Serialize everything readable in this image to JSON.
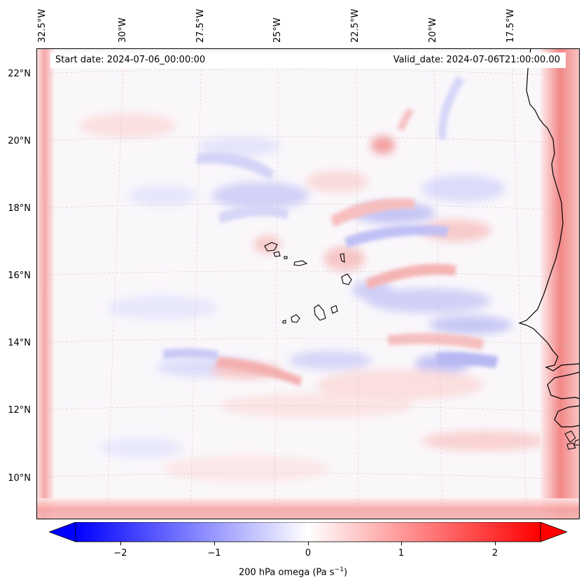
{
  "map": {
    "start_date": "Start date: 2024-07-06_00:00:00",
    "valid_date": "Valid_date: 2024-07-06T21:00:00.00",
    "lon_labels": [
      "32.5°W",
      "30°W",
      "27.5°W",
      "25°W",
      "22.5°W",
      "20°W",
      "17.5°W"
    ],
    "lat_labels": [
      "22°N",
      "20°N",
      "18°N",
      "16°N",
      "14°N",
      "12°N",
      "10°N"
    ]
  },
  "colorbar": {
    "tick_labels": [
      "−2",
      "−1",
      "0",
      "1",
      "2"
    ],
    "label_main": "200 hPa omega (Pa s",
    "label_sup": "−1",
    "label_end": ")",
    "min": -2.6,
    "max": 2.6,
    "colors": {
      "low": "#0000ff",
      "mid": "#ffffff",
      "high": "#ff0000"
    }
  }
}
